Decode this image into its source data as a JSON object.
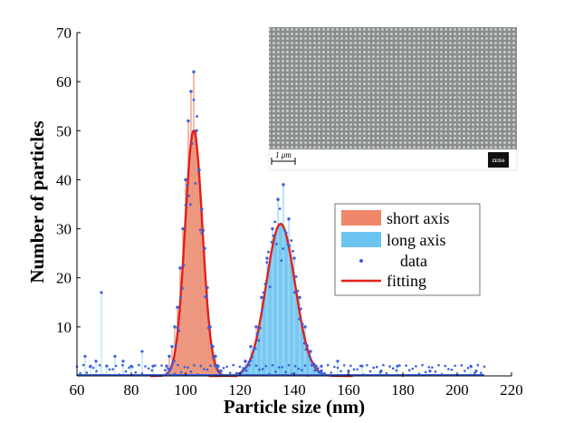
{
  "chart_data": {
    "type": "histogram",
    "title": "",
    "xlabel": "Particle size (nm)",
    "ylabel": "Number of particles",
    "xlim": [
      60,
      220
    ],
    "ylim": [
      0,
      70
    ],
    "xticks": [
      60,
      80,
      100,
      120,
      140,
      160,
      180,
      200,
      220
    ],
    "yticks": [
      10,
      20,
      30,
      40,
      50,
      60,
      70
    ],
    "legend": {
      "position": "right-middle",
      "entries": [
        {
          "label": "short axis",
          "kind": "patch",
          "color": "#f0876a"
        },
        {
          "label": "long axis",
          "kind": "patch",
          "color": "#6cc4f0"
        },
        {
          "label": "data",
          "kind": "marker",
          "color": "#3a5fdc"
        },
        {
          "label": "fitting",
          "kind": "line",
          "color": "#e0201a"
        }
      ]
    },
    "series": [
      {
        "name": "short axis",
        "color": "#f0876a",
        "fit": {
          "mean": 103,
          "sigma": 3.2,
          "peak": 50
        },
        "bins_x": [
          93,
          94,
          95,
          96,
          97,
          98,
          99,
          100,
          101,
          102,
          103,
          104,
          105,
          106,
          107,
          108,
          109,
          110,
          111,
          112,
          113
        ],
        "bins_count": [
          2,
          4,
          6,
          10,
          14,
          22,
          30,
          40,
          52,
          58,
          62,
          50,
          42,
          34,
          26,
          18,
          10,
          6,
          4,
          2,
          1
        ]
      },
      {
        "name": "long axis",
        "color": "#6cc4f0",
        "fit": {
          "mean": 135,
          "sigma": 5.3,
          "peak": 31
        },
        "bins_x": [
          122,
          124,
          126,
          128,
          130,
          132,
          134,
          136,
          138,
          140,
          142,
          144,
          146,
          148,
          150
        ],
        "bins_count": [
          3,
          6,
          10,
          16,
          24,
          30,
          36,
          39,
          32,
          24,
          16,
          10,
          5,
          2,
          1
        ]
      }
    ],
    "outliers": [
      [
        63,
        4
      ],
      [
        65,
        2
      ],
      [
        67,
        3
      ],
      [
        69,
        17
      ],
      [
        71,
        2
      ],
      [
        74,
        4
      ],
      [
        77,
        3
      ],
      [
        80,
        2
      ],
      [
        84,
        5
      ],
      [
        88,
        2
      ],
      [
        150,
        2
      ],
      [
        156,
        3
      ],
      [
        160,
        1
      ],
      [
        165,
        2
      ],
      [
        172,
        1
      ],
      [
        178,
        2
      ],
      [
        190,
        1
      ],
      [
        205,
        2
      ],
      [
        207,
        1
      ]
    ]
  },
  "inset": {
    "scale_label": "1 μm",
    "brand_label": "ZEISS"
  }
}
